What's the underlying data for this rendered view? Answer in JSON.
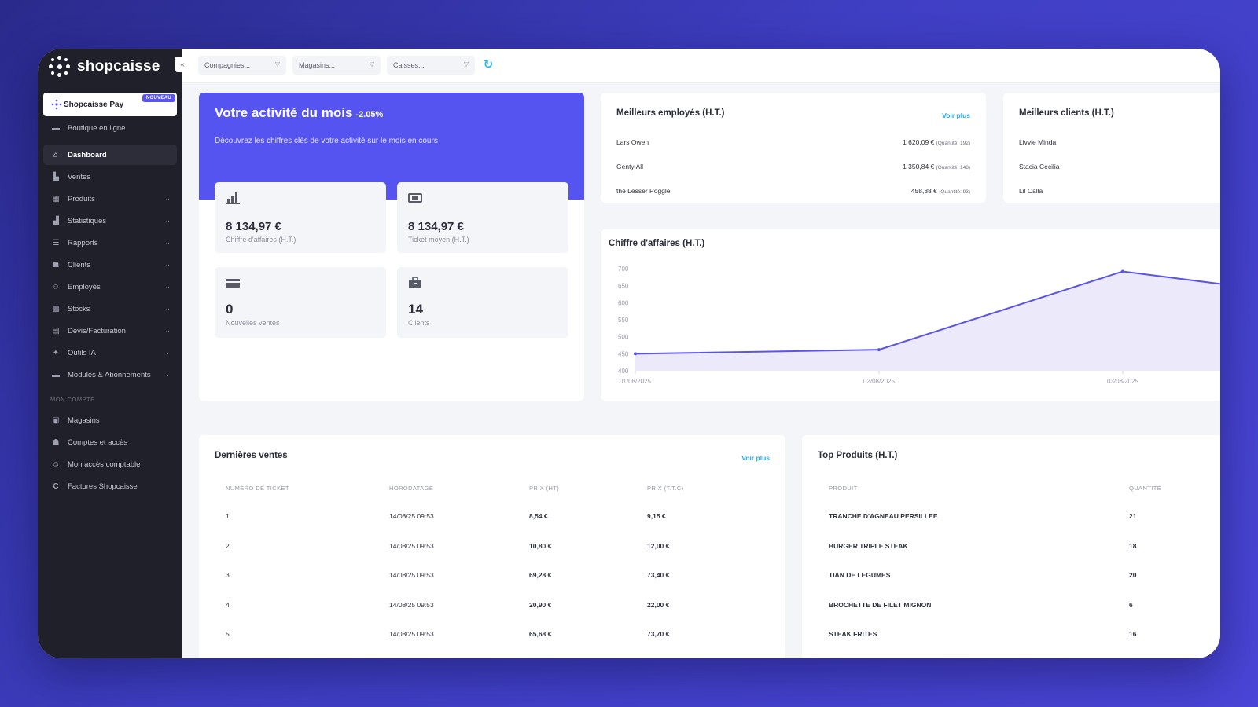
{
  "app": {
    "logo_text": "shopcaisse"
  },
  "sidebar": {
    "pay": {
      "label": "Shopcaisse Pay",
      "badge": "NOUVEAU"
    },
    "items": [
      {
        "label": "Boutique en ligne",
        "icon": "store-icon"
      },
      {
        "label": "Dashboard",
        "icon": "home-icon",
        "active": true
      },
      {
        "label": "Ventes",
        "icon": "sales-icon"
      },
      {
        "label": "Produits",
        "icon": "products-icon"
      },
      {
        "label": "Statistiques",
        "icon": "stats-icon"
      },
      {
        "label": "Rapports",
        "icon": "reports-icon"
      },
      {
        "label": "Clients",
        "icon": "clients-icon"
      },
      {
        "label": "Employés",
        "icon": "employees-icon"
      },
      {
        "label": "Stocks",
        "icon": "stocks-icon"
      },
      {
        "label": "Devis/Facturation",
        "icon": "invoice-icon"
      },
      {
        "label": "Outils IA",
        "icon": "ai-icon"
      },
      {
        "label": "Modules & Abonnements",
        "icon": "modules-icon"
      }
    ],
    "section_label": "MON COMPTE",
    "account_items": [
      {
        "label": "Magasins",
        "icon": "shops-icon"
      },
      {
        "label": "Comptes et accès",
        "icon": "accounts-icon"
      },
      {
        "label": "Mon accès comptable",
        "icon": "accounting-icon"
      },
      {
        "label": "Factures Shopcaisse",
        "icon": "bills-icon"
      }
    ]
  },
  "topbar": {
    "companies_placeholder": "Compagnies...",
    "shops_placeholder": "Magasins...",
    "registers_placeholder": "Caisses..."
  },
  "hero": {
    "title": "Votre activité du mois",
    "delta": "-2.05%",
    "subtitle": "Découvrez les chiffres clés de votre activité sur le mois en cours",
    "kpis": [
      {
        "value": "8 134,97 €",
        "label": "Chiffre d'affaires (H.T.)",
        "icon": "bar-chart-icon"
      },
      {
        "value": "8 134,97 €",
        "label": "Ticket moyen (H.T.)",
        "icon": "ticket-icon"
      },
      {
        "value": "0",
        "label": "Nouvelles ventes",
        "icon": "card-icon"
      },
      {
        "value": "14",
        "label": "Clients",
        "icon": "briefcase-icon"
      }
    ]
  },
  "employees": {
    "title": "Meilleurs employés (H.T.)",
    "more": "Voir plus",
    "rows": [
      {
        "name": "Lars Owen",
        "amount": "1 620,09 €",
        "qty": "(Quantité: 192)"
      },
      {
        "name": "Genty All",
        "amount": "1 350,84 €",
        "qty": "(Quantité: 148)"
      },
      {
        "name": "the Lesser Poggle",
        "amount": "458,38 €",
        "qty": "(Quantité: 93)"
      }
    ]
  },
  "clients": {
    "title": "Meilleurs clients (H.T.)",
    "rows": [
      "Livvie Minda",
      "Stacia Cecilia",
      "Lil Calla"
    ]
  },
  "chart_data": {
    "type": "area",
    "title": "Chiffre d'affaires (H.T.)",
    "x": [
      "01/08/2025",
      "02/08/2025",
      "03/08/2025",
      ""
    ],
    "series": [
      {
        "values": [
          450,
          462,
          692,
          600
        ]
      }
    ],
    "y_ticks": [
      "700",
      "650",
      "600",
      "550",
      "500",
      "450",
      "400"
    ],
    "ylim": [
      400,
      700
    ],
    "color": "#5a55e6",
    "fill": "#ece9fb"
  },
  "sales": {
    "title": "Dernières ventes",
    "more": "Voir plus",
    "headers": [
      "NUMÉRO DE TICKET",
      "HORODATAGE",
      "PRIX (HT)",
      "PRIX (T.T.C)"
    ],
    "rows": [
      [
        "1",
        "14/08/25 09:53",
        "8,54 €",
        "9,15 €"
      ],
      [
        "2",
        "14/08/25 09:53",
        "10,80 €",
        "12,00 €"
      ],
      [
        "3",
        "14/08/25 09:53",
        "69,28 €",
        "73,40 €"
      ],
      [
        "4",
        "14/08/25 09:53",
        "20,90 €",
        "22,00 €"
      ],
      [
        "5",
        "14/08/25 09:53",
        "65,68 €",
        "73,70 €"
      ]
    ]
  },
  "products": {
    "title": "Top Produits (H.T.)",
    "headers": [
      "PRODUIT",
      "QUANTITÉ"
    ],
    "rows": [
      [
        "TRANCHE D'AGNEAU PERSILLEE",
        "21"
      ],
      [
        "BURGER TRIPLE STEAK",
        "18"
      ],
      [
        "TIAN DE LEGUMES",
        "20"
      ],
      [
        "BROCHETTE DE FILET MIGNON",
        "6"
      ],
      [
        "STEAK FRITES",
        "16"
      ]
    ]
  }
}
